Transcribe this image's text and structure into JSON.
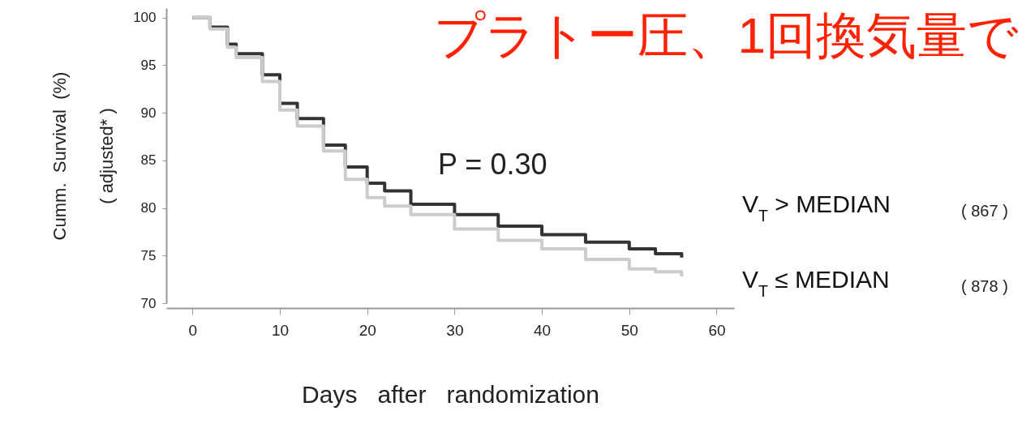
{
  "chart_data": {
    "type": "step",
    "title": "プラトー圧、1回換気量で",
    "xlabel": "Days   after   randomization",
    "ylabel": "Cumm.  Survival  (%)\n( adjusted* )",
    "x": [
      0,
      1,
      2,
      4,
      5,
      8,
      10,
      12,
      15,
      17.5,
      20,
      22,
      25,
      30,
      35,
      40,
      45,
      50,
      53,
      56
    ],
    "series": [
      {
        "name": "V$_{T}$ > MEDIAN",
        "color": "#333333",
        "values": [
          100,
          100,
          99.0,
          97.2,
          96.2,
          94.0,
          91.0,
          89.4,
          86.6,
          84.3,
          82.6,
          81.8,
          80.4,
          79.3,
          78.1,
          77.2,
          76.4,
          75.7,
          75.2,
          74.8
        ]
      },
      {
        "name": "V$_{T}$ ≤ MEDIAN",
        "color": "#cccccc",
        "values": [
          100,
          100,
          98.8,
          96.9,
          95.8,
          93.3,
          90.3,
          88.6,
          86.0,
          83.0,
          81.1,
          80.2,
          79.3,
          77.8,
          76.6,
          75.7,
          74.6,
          73.6,
          73.3,
          72.8
        ]
      }
    ],
    "xlim": [
      -3,
      62
    ],
    "ylim": [
      70,
      101
    ],
    "xticks": [
      0,
      10,
      20,
      30,
      40,
      50,
      60
    ],
    "yticks": [
      70,
      75,
      80,
      85,
      90,
      95,
      100
    ],
    "annotations": [
      "P = 0.30",
      "( 867 )",
      "( 878 )"
    ],
    "grid": false
  }
}
